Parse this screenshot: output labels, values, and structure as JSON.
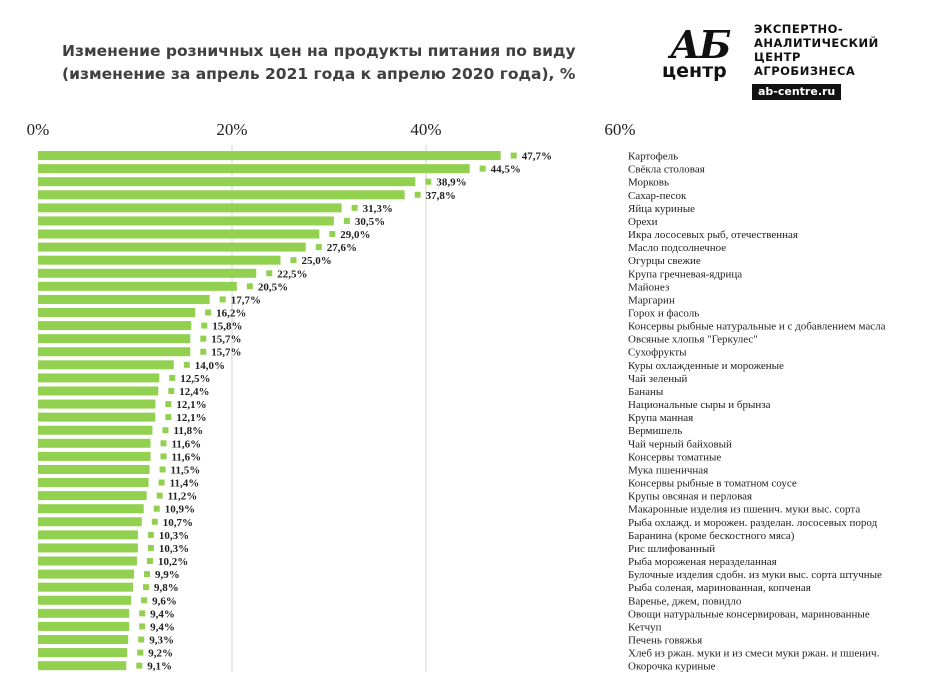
{
  "title": {
    "line1": "Изменение розничных цен на продукты питания по виду",
    "line2": "(изменение за апрель 2021 года к апрелю 2020 года), %"
  },
  "logo": {
    "mark_top": "АБ",
    "mark_bottom": "центр",
    "text_lines": [
      "ЭКСПЕРТНО-",
      "АНАЛИТИЧЕСКИЙ",
      "ЦЕНТР",
      "АГРОБИЗНЕСА"
    ],
    "url": "ab-centre.ru"
  },
  "colors": {
    "bar": "#92d050",
    "grid": "#d0d0d0",
    "label": "#222222"
  },
  "chart_data": {
    "type": "bar",
    "orientation": "horizontal",
    "xlim": [
      0,
      60
    ],
    "x_ticks": [
      "0%",
      "20%",
      "40%",
      "60%"
    ],
    "x_tick_values": [
      0,
      20,
      40,
      60
    ],
    "grid": true,
    "categories": [
      "Картофель",
      "Свёкла столовая",
      "Морковь",
      "Сахар-песок",
      "Яйца куриные",
      "Орехи",
      "Икра лососевых рыб, отечественная",
      "Масло подсолнечное",
      "Огурцы свежие",
      "Крупа гречневая-ядрица",
      "Майонез",
      "Маргарин",
      "Горох и фасоль",
      "Консервы рыбные натуральные и с добавлением масла",
      "Овсяные хлопья \"Геркулес\"",
      "Сухофрукты",
      "Куры охлажденные и мороженые",
      "Чай зеленый",
      "Бананы",
      "Национальные сыры и брынза",
      "Крупа манная",
      "Вермишель",
      "Чай черный байховый",
      "Консервы томатные",
      "Мука пшеничная",
      "Консервы рыбные в томатном соусе",
      "Крупы овсяная и перловая",
      "Макаронные изделия из пшенич. муки выс. сорта",
      "Рыба охлажд. и морожен. разделан. лососевых пород",
      "Баранина (кроме бескостного мяса)",
      "Рис шлифованный",
      "Рыба мороженая неразделанная",
      "Булочные изделия сдобн. из муки выс. сорта штучные",
      "Рыба соленая, маринованная, копченая",
      "Варенье, джем, повидло",
      "Овощи натуральные консервирован, маринованные",
      "Кетчуп",
      "Печень говяжья",
      "Хлеб из ржан. муки и из смеси муки ржан. и пшенич.",
      "Окорочка куриные"
    ],
    "values": [
      47.7,
      44.5,
      38.9,
      37.8,
      31.3,
      30.5,
      29.0,
      27.6,
      25.0,
      22.5,
      20.5,
      17.7,
      16.2,
      15.8,
      15.7,
      15.7,
      14.0,
      12.5,
      12.4,
      12.1,
      12.1,
      11.8,
      11.6,
      11.6,
      11.5,
      11.4,
      11.2,
      10.9,
      10.7,
      10.3,
      10.3,
      10.2,
      9.9,
      9.8,
      9.6,
      9.4,
      9.4,
      9.3,
      9.2,
      9.1
    ],
    "value_labels": [
      "47,7%",
      "44,5%",
      "38,9%",
      "37,8%",
      "31,3%",
      "30,5%",
      "29,0%",
      "27,6%",
      "25,0%",
      "22,5%",
      "20,5%",
      "17,7%",
      "16,2%",
      "15,8%",
      "15,7%",
      "15,7%",
      "14,0%",
      "12,5%",
      "12,4%",
      "12,1%",
      "12,1%",
      "11,8%",
      "11,6%",
      "11,6%",
      "11,5%",
      "11,4%",
      "11,2%",
      "10,9%",
      "10,7%",
      "10,3%",
      "10,3%",
      "10,2%",
      "9,9%",
      "9,8%",
      "9,6%",
      "9,4%",
      "9,4%",
      "9,3%",
      "9,2%",
      "9,1%"
    ],
    "legend": "none"
  }
}
